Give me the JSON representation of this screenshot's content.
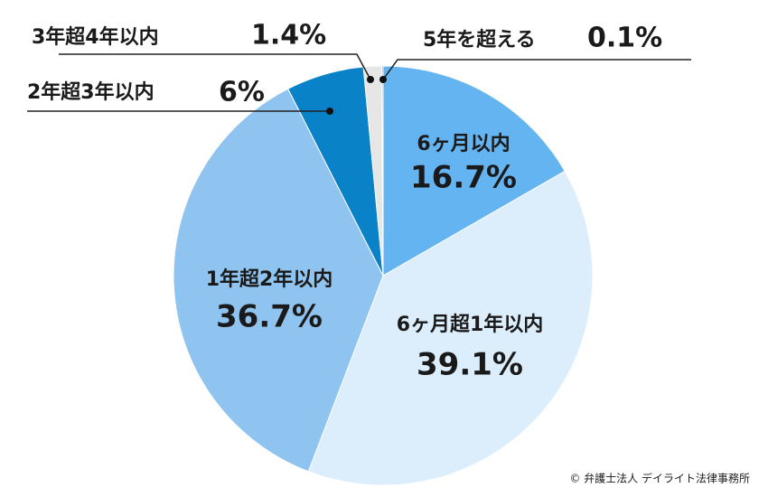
{
  "chart_data": {
    "type": "pie",
    "categories": [
      "6ヶ月以内",
      "6ヶ月超1年以内",
      "1年超2年以内",
      "2年超3年以内",
      "3年超4年以内",
      "5年を超える"
    ],
    "values": [
      16.7,
      39.1,
      36.7,
      6,
      1.4,
      0.1
    ],
    "value_labels": [
      "16.7%",
      "39.1%",
      "36.7%",
      "6%",
      "1.4%",
      "0.1%"
    ],
    "colors": [
      "#64b4f2",
      "#dcedfc",
      "#8fc3f0",
      "#0a82c8",
      "#e6e6e6",
      "#8a8a8a"
    ],
    "source": "© 弁護士法人 デイライト法律事務所"
  }
}
